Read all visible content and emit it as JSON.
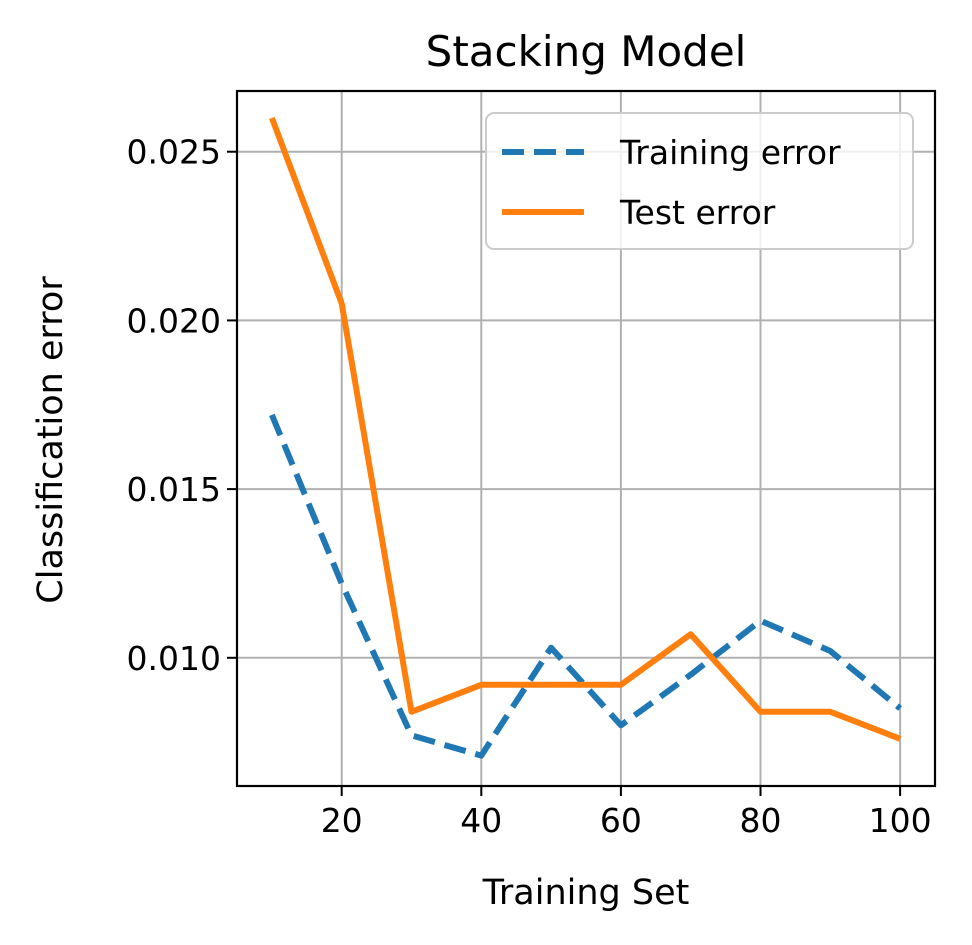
{
  "chart_data": {
    "type": "line",
    "title": "Stacking Model",
    "xlabel": "Training Set",
    "ylabel": "Classification error",
    "xlim": [
      5,
      105
    ],
    "ylim": [
      0.0062,
      0.0268
    ],
    "xticks": [
      20,
      40,
      60,
      80,
      100
    ],
    "xtick_labels": [
      "20",
      "40",
      "60",
      "80",
      "100"
    ],
    "yticks": [
      0.01,
      0.015,
      0.02,
      0.025
    ],
    "ytick_labels": [
      "0.010",
      "0.015",
      "0.020",
      "0.025"
    ],
    "grid": true,
    "legend_position": "top-right",
    "x": [
      10,
      20,
      30,
      40,
      50,
      60,
      70,
      80,
      90,
      100
    ],
    "series": [
      {
        "name": "Training error",
        "color": "#1f77b4",
        "style": "dashed",
        "values": [
          0.0172,
          0.0122,
          0.0077,
          0.0071,
          0.0103,
          0.008,
          0.0095,
          0.0111,
          0.0102,
          0.0085
        ]
      },
      {
        "name": "Test error",
        "color": "#ff7f0e",
        "style": "solid",
        "values": [
          0.026,
          0.0205,
          0.0084,
          0.0092,
          0.0092,
          0.0092,
          0.0107,
          0.0084,
          0.0084,
          0.0076
        ]
      }
    ]
  }
}
